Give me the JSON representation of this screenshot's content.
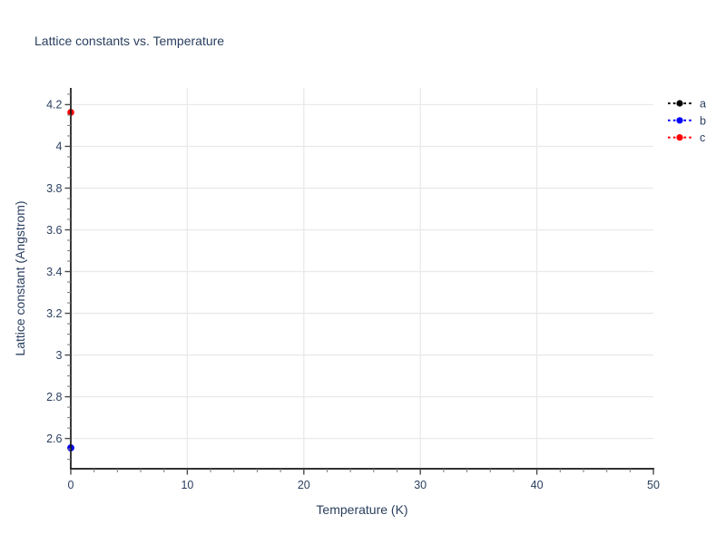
{
  "figure": {
    "background": "#ffffff"
  },
  "chart_data": {
    "type": "scatter",
    "title": "Lattice constants vs. Temperature",
    "xlabel": "Temperature (K)",
    "ylabel": "Lattice constant (Angstrom)",
    "xlim": [
      0,
      50
    ],
    "ylim": [
      2.455,
      4.28
    ],
    "x_ticks": [
      0,
      10,
      20,
      30,
      40,
      50
    ],
    "x_tick_labels": [
      "0",
      "10",
      "20",
      "30",
      "40",
      "50"
    ],
    "x_minor_step": 2,
    "y_ticks": [
      2.6,
      2.8,
      3.0,
      3.2,
      3.4,
      3.6,
      3.8,
      4.0,
      4.2
    ],
    "y_tick_labels": [
      "2.6",
      "2.8",
      "3",
      "3.2",
      "3.4",
      "3.6",
      "3.8",
      "4",
      "4.2"
    ],
    "y_minor_step": 0.05,
    "grid": true,
    "legend_position": "outside-top-right",
    "legend_labels": [
      "a",
      "b",
      "c"
    ],
    "series": [
      {
        "name": "a",
        "color": "#000000",
        "line_style": "dashed",
        "marker": "circle",
        "x": [
          0
        ],
        "y": [
          2.555
        ]
      },
      {
        "name": "b",
        "color": "#0000ff",
        "line_style": "dashed",
        "marker": "circle",
        "x": [
          0
        ],
        "y": [
          2.555
        ]
      },
      {
        "name": "c",
        "color": "#ff0000",
        "line_style": "dashed",
        "marker": "circle",
        "x": [
          0
        ],
        "y": [
          4.163
        ]
      }
    ],
    "colors": {
      "text": "#2a3f5f",
      "grid": "#e9e9e9",
      "axis_line": "#161616",
      "major_tick": "#4a4a4a",
      "minor_tick": "#7a7a7a"
    }
  }
}
